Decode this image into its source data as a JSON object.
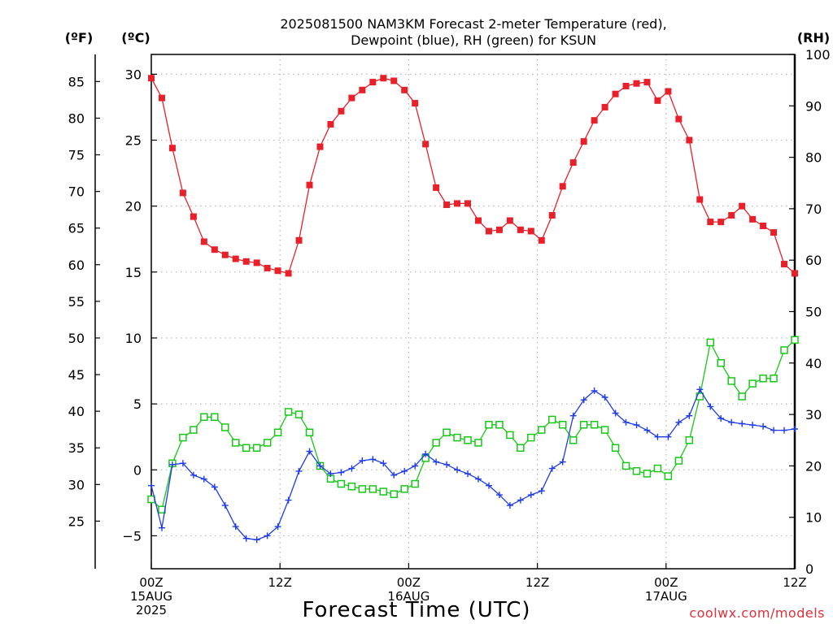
{
  "chart_data": {
    "type": "line",
    "title": "2025081500 NAM3KM Forecast 2-meter Temperature (red),",
    "subtitle": "Dewpoint (blue), RH (green) for KSUN",
    "xlabel": "Forecast Time (UTC)",
    "credit": "coolwx.com/models",
    "unit_f": "(ºF)",
    "unit_c": "(ºC)",
    "unit_rh": "(RH)",
    "x_tick_labels": [
      [
        "00Z",
        "15AUG",
        "2025"
      ],
      [
        "12Z"
      ],
      [
        "00Z",
        "16AUG"
      ],
      [
        "12Z"
      ],
      [
        "00Z",
        "17AUG"
      ],
      [
        "12Z"
      ]
    ],
    "x_tick_hours": [
      0,
      12,
      24,
      36,
      48,
      60
    ],
    "xlim_hours": [
      0,
      60
    ],
    "celsius_axis": {
      "ticks": [
        -5,
        0,
        5,
        10,
        15,
        20,
        25,
        30
      ],
      "ylim": [
        -7.5,
        31.5
      ]
    },
    "fahrenheit_axis": {
      "ticks": [
        25,
        30,
        35,
        40,
        45,
        50,
        55,
        60,
        65,
        70,
        75,
        80,
        85
      ]
    },
    "rh_axis": {
      "ticks": [
        0,
        10,
        20,
        30,
        40,
        50,
        60,
        70,
        80,
        90,
        100
      ],
      "ylim": [
        0,
        100
      ]
    },
    "grid": true,
    "colors": {
      "temperature": "#e8202a",
      "dewpoint": "#1e3ce8",
      "rh": "#18c818"
    },
    "series": [
      {
        "name": "Temperature",
        "axis": "celsius",
        "values": [
          29.7,
          28.2,
          24.4,
          21.0,
          19.2,
          17.3,
          16.7,
          16.3,
          16.0,
          15.8,
          15.7,
          15.3,
          15.1,
          14.9,
          17.4,
          21.6,
          24.5,
          26.2,
          27.2,
          28.2,
          28.8,
          29.4,
          29.7,
          29.5,
          28.8,
          27.8,
          24.7,
          21.4,
          20.1,
          20.2,
          20.2,
          18.9,
          18.1,
          18.2,
          18.9,
          18.2,
          18.1,
          17.4,
          19.3,
          21.5,
          23.3,
          24.9,
          26.5,
          27.5,
          28.5,
          29.1,
          29.3,
          29.4,
          28.0,
          28.7,
          26.6,
          25.0,
          20.5,
          18.8,
          18.8,
          19.3,
          20.0,
          19.0,
          18.5,
          18.0,
          15.6,
          14.9
        ]
      },
      {
        "name": "Dewpoint",
        "axis": "celsius",
        "values": [
          -1.2,
          -4.4,
          0.4,
          0.5,
          -0.4,
          -0.7,
          -1.3,
          -2.7,
          -4.3,
          -5.2,
          -5.3,
          -5.0,
          -4.3,
          -2.3,
          -0.1,
          1.4,
          0.3,
          -0.3,
          -0.2,
          0.1,
          0.7,
          0.8,
          0.5,
          -0.4,
          -0.1,
          0.3,
          1.2,
          0.6,
          0.4,
          0.0,
          -0.3,
          -0.7,
          -1.2,
          -1.9,
          -2.7,
          -2.3,
          -1.9,
          -1.6,
          0.1,
          0.6,
          4.1,
          5.3,
          6.0,
          5.5,
          4.3,
          3.6,
          3.4,
          3.0,
          2.5,
          2.5,
          3.6,
          4.1,
          6.1,
          4.8,
          3.9,
          3.6,
          3.5,
          3.4,
          3.3,
          3.0,
          3.0,
          3.1
        ]
      },
      {
        "name": "RH",
        "axis": "rh",
        "values": [
          13.5,
          11.5,
          20.5,
          25.5,
          27.0,
          29.5,
          29.5,
          27.5,
          24.5,
          23.5,
          23.5,
          24.5,
          26.5,
          30.5,
          30.0,
          26.5,
          20.0,
          17.5,
          16.5,
          16.0,
          15.5,
          15.5,
          15.0,
          14.5,
          15.5,
          16.5,
          21.5,
          24.5,
          26.5,
          25.5,
          25.0,
          24.5,
          28.0,
          28.0,
          26.0,
          23.5,
          25.5,
          27.0,
          29.0,
          28.0,
          25.0,
          28.0,
          28.0,
          27.0,
          23.5,
          20.0,
          19.0,
          18.5,
          19.5,
          18.0,
          21.0,
          25.0,
          33.5,
          44.0,
          40.0,
          36.5,
          33.5,
          36.0,
          37.0,
          37.0,
          42.5,
          44.5
        ]
      }
    ]
  }
}
